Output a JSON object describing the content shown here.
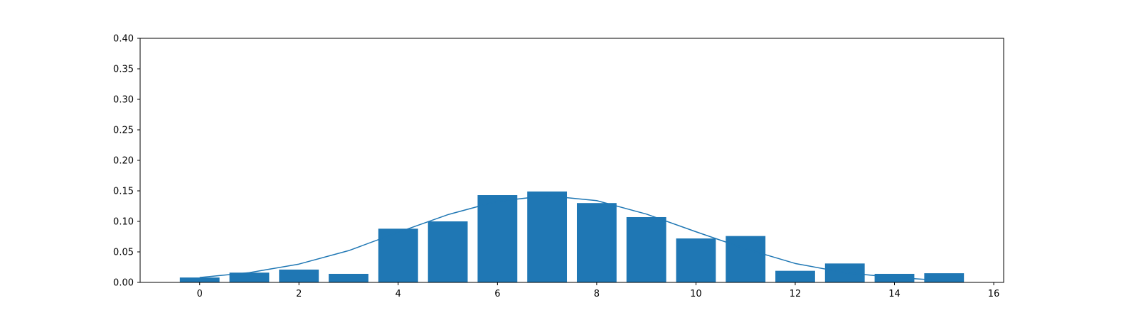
{
  "chart_data": {
    "type": "bar",
    "xlim": [
      -1.2,
      16.2
    ],
    "ylim": [
      0,
      0.4
    ],
    "x_ticks": [
      0,
      2,
      4,
      6,
      8,
      10,
      12,
      14,
      16
    ],
    "y_ticks": [
      0.0,
      0.05,
      0.1,
      0.15,
      0.2,
      0.25,
      0.3,
      0.35,
      0.4
    ],
    "x_tick_labels": [
      "0",
      "2",
      "4",
      "6",
      "8",
      "10",
      "12",
      "14",
      "16"
    ],
    "y_tick_labels": [
      "0.00",
      "0.05",
      "0.10",
      "0.15",
      "0.20",
      "0.25",
      "0.30",
      "0.35",
      "0.40"
    ],
    "grid": false,
    "series": [
      {
        "type": "bar",
        "x": [
          0,
          1,
          2,
          3,
          4,
          5,
          6,
          7,
          8,
          9,
          10,
          11,
          12,
          13,
          14,
          15
        ],
        "values": [
          0.008,
          0.016,
          0.021,
          0.014,
          0.088,
          0.1,
          0.143,
          0.149,
          0.13,
          0.107,
          0.072,
          0.076,
          0.019,
          0.031,
          0.014,
          0.015
        ],
        "color": "#1f77b4"
      },
      {
        "type": "line",
        "x": [
          0,
          1,
          2,
          3,
          4,
          5,
          6,
          7,
          8,
          9,
          10,
          11,
          12,
          13,
          14,
          15
        ],
        "values": [
          0.008,
          0.016,
          0.03,
          0.052,
          0.082,
          0.111,
          0.133,
          0.142,
          0.134,
          0.112,
          0.083,
          0.055,
          0.031,
          0.016,
          0.008,
          0.003
        ],
        "color": "#1f77b4"
      }
    ]
  }
}
